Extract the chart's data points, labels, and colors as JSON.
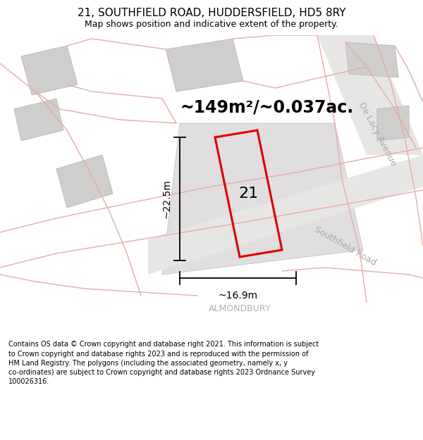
{
  "title": "21, SOUTHFIELD ROAD, HUDDERSFIELD, HD5 8RY",
  "subtitle": "Map shows position and indicative extent of the property.",
  "area_text": "~149m²/~0.037ac.",
  "property_number": "21",
  "width_label": "~16.9m",
  "height_label": "~22.5m",
  "road_label_southfield": "Southfield Road",
  "road_label_delacy": "De Lacy Avenue",
  "district_label": "ALMONDBURY",
  "footer_text": "Contains OS data © Crown copyright and database right 2021. This information is subject to Crown copyright and database rights 2023 and is reproduced with the permission of HM Land Registry. The polygons (including the associated geometry, namely x, y co-ordinates) are subject to Crown copyright and database rights 2023 Ordnance Survey 100026316.",
  "map_bg": "#f2f0f0",
  "plot_fill": "#e0dede",
  "building_fill": "#d0cecd",
  "building_edge": "#b8b6b5",
  "road_fill": "#e8e6e5",
  "pink": "#e8a8a8",
  "red_color": "#dd0000",
  "gray_road_label": "#aaaaaa",
  "title_fs": 11,
  "subtitle_fs": 9,
  "area_fs": 17,
  "prop_fs": 16,
  "dim_fs": 10,
  "road_fs": 9,
  "dist_fs": 9,
  "footer_fs": 7.0
}
